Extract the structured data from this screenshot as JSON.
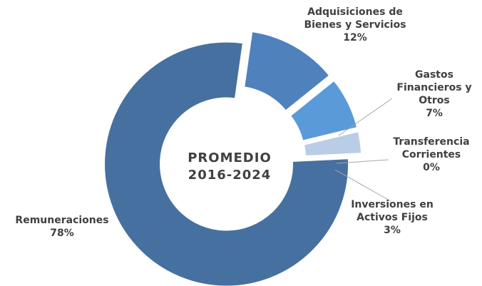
{
  "chart_data": {
    "type": "donut",
    "center_label": [
      "PROMEDIO",
      "2016-2024"
    ],
    "categories": [
      "Adquisiciones de Bienes y Servicios",
      "Gastos Financieros y Otros",
      "Transferencia Corrientes",
      "Inversiones en Activos Fijos",
      "Remuneraciones"
    ],
    "values": [
      12,
      7,
      0,
      3,
      78
    ],
    "value_labels": [
      "12%",
      "7%",
      "0%",
      "3%",
      "78%"
    ],
    "colors": [
      "#4f81bd",
      "#5b9ad8",
      "#a9c0de",
      "#b9cde6",
      "#46709f"
    ]
  }
}
